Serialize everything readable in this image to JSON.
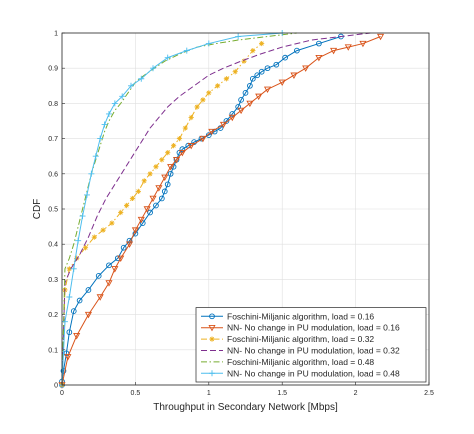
{
  "chart_data": {
    "type": "line",
    "title": "",
    "xlabel": "Throughput in Secondary Network [Mbps]",
    "ylabel": "CDF",
    "xlim": [
      0,
      2.5
    ],
    "ylim": [
      0,
      1
    ],
    "xticks": [
      "0",
      "0.5",
      "1",
      "1.5",
      "2",
      "2.5"
    ],
    "yticks": [
      "0",
      "0.1",
      "0.2",
      "0.3",
      "0.4",
      "0.5",
      "0.6",
      "0.7",
      "0.8",
      "0.9",
      "1"
    ],
    "grid": true,
    "legend_position": "bottom-right",
    "series": [
      {
        "name": "Foschini-Miljanic algorithm, load = 0.16",
        "color": "#0072BD",
        "dash": "solid",
        "marker": "circle",
        "x": [
          0,
          0,
          0.01,
          0.03,
          0.05,
          0.08,
          0.12,
          0.18,
          0.25,
          0.32,
          0.38,
          0.42,
          0.46,
          0.5,
          0.55,
          0.6,
          0.64,
          0.68,
          0.7,
          0.72,
          0.74,
          0.76,
          0.78,
          0.8,
          0.82,
          0.86,
          0.9,
          0.95,
          1.0,
          1.04,
          1.08,
          1.12,
          1.16,
          1.2,
          1.22,
          1.25,
          1.28,
          1.3,
          1.33,
          1.36,
          1.4,
          1.46,
          1.52,
          1.6,
          1.75,
          1.9
        ],
        "y": [
          0,
          0.01,
          0.04,
          0.09,
          0.15,
          0.21,
          0.24,
          0.27,
          0.31,
          0.34,
          0.36,
          0.39,
          0.41,
          0.43,
          0.46,
          0.49,
          0.51,
          0.53,
          0.55,
          0.57,
          0.6,
          0.62,
          0.64,
          0.66,
          0.67,
          0.68,
          0.69,
          0.7,
          0.71,
          0.72,
          0.73,
          0.75,
          0.77,
          0.79,
          0.81,
          0.83,
          0.85,
          0.87,
          0.88,
          0.89,
          0.9,
          0.91,
          0.93,
          0.95,
          0.97,
          0.99
        ]
      },
      {
        "name": "NN- No change in PU modulation, load = 0.16",
        "color": "#D95319",
        "dash": "solid",
        "marker": "triangle-down",
        "x": [
          0,
          0.04,
          0.1,
          0.18,
          0.26,
          0.32,
          0.36,
          0.4,
          0.46,
          0.5,
          0.54,
          0.58,
          0.62,
          0.66,
          0.7,
          0.74,
          0.78,
          0.82,
          0.88,
          0.96,
          1.02,
          1.1,
          1.16,
          1.22,
          1.28,
          1.34,
          1.4,
          1.5,
          1.58,
          1.66,
          1.75,
          1.85,
          1.95,
          2.05,
          2.17
        ],
        "y": [
          0,
          0.08,
          0.14,
          0.2,
          0.25,
          0.29,
          0.33,
          0.36,
          0.4,
          0.44,
          0.47,
          0.5,
          0.53,
          0.56,
          0.59,
          0.62,
          0.64,
          0.66,
          0.68,
          0.7,
          0.72,
          0.74,
          0.76,
          0.78,
          0.8,
          0.82,
          0.84,
          0.86,
          0.88,
          0.9,
          0.93,
          0.95,
          0.96,
          0.97,
          0.99
        ]
      },
      {
        "name": "Foschini-Miljanic algorithm, load = 0.32",
        "color": "#EDB120",
        "dash": "dashdot",
        "marker": "asterisk",
        "x": [
          0,
          0.02,
          0.05,
          0.1,
          0.16,
          0.22,
          0.28,
          0.34,
          0.4,
          0.44,
          0.48,
          0.52,
          0.56,
          0.6,
          0.64,
          0.68,
          0.72,
          0.76,
          0.8,
          0.84,
          0.88,
          0.92,
          0.96,
          1.0,
          1.06,
          1.12,
          1.18,
          1.24,
          1.3,
          1.36
        ],
        "y": [
          0,
          0.27,
          0.33,
          0.36,
          0.39,
          0.42,
          0.44,
          0.46,
          0.49,
          0.51,
          0.53,
          0.55,
          0.58,
          0.6,
          0.62,
          0.64,
          0.66,
          0.68,
          0.7,
          0.73,
          0.76,
          0.79,
          0.81,
          0.83,
          0.85,
          0.87,
          0.89,
          0.92,
          0.95,
          0.97
        ]
      },
      {
        "name": "NN- No change in PU modulation, load = 0.32",
        "color": "#7E2F8E",
        "dash": "dashed",
        "marker": "none",
        "x": [
          0,
          0.02,
          0.06,
          0.12,
          0.18,
          0.24,
          0.3,
          0.36,
          0.42,
          0.48,
          0.54,
          0.6,
          0.66,
          0.72,
          0.8,
          0.9,
          1.0,
          1.1,
          1.22,
          1.35,
          1.5,
          1.7,
          1.9,
          2.1
        ],
        "y": [
          0,
          0.29,
          0.33,
          0.37,
          0.42,
          0.48,
          0.53,
          0.57,
          0.61,
          0.65,
          0.69,
          0.73,
          0.76,
          0.79,
          0.82,
          0.85,
          0.88,
          0.9,
          0.92,
          0.94,
          0.96,
          0.98,
          0.99,
          1.0
        ]
      },
      {
        "name": "Foschini-Miljanic algorithm, load = 0.48",
        "color": "#77AC30",
        "dash": "dashdot",
        "marker": "none",
        "x": [
          0,
          0.02,
          0.05,
          0.08,
          0.11,
          0.14,
          0.17,
          0.2,
          0.23,
          0.26,
          0.29,
          0.32,
          0.36,
          0.4,
          0.45,
          0.5,
          0.56,
          0.63,
          0.7,
          0.8,
          0.92,
          1.05,
          1.2,
          1.4,
          1.6
        ],
        "y": [
          0,
          0.33,
          0.36,
          0.4,
          0.45,
          0.5,
          0.55,
          0.6,
          0.64,
          0.68,
          0.72,
          0.75,
          0.78,
          0.8,
          0.83,
          0.86,
          0.88,
          0.9,
          0.92,
          0.94,
          0.96,
          0.97,
          0.98,
          0.99,
          1.0
        ]
      },
      {
        "name": "NN- No change in PU modulation, load = 0.48",
        "color": "#4DBEEE",
        "dash": "solid",
        "marker": "plus",
        "x": [
          0,
          0.02,
          0.05,
          0.08,
          0.11,
          0.14,
          0.17,
          0.2,
          0.23,
          0.26,
          0.29,
          0.32,
          0.36,
          0.41,
          0.47,
          0.54,
          0.62,
          0.72,
          0.85,
          1.0,
          1.2,
          1.5
        ],
        "y": [
          0,
          0.18,
          0.25,
          0.33,
          0.41,
          0.48,
          0.54,
          0.6,
          0.65,
          0.7,
          0.74,
          0.77,
          0.8,
          0.82,
          0.85,
          0.87,
          0.9,
          0.93,
          0.95,
          0.97,
          0.99,
          1.0
        ]
      }
    ]
  }
}
